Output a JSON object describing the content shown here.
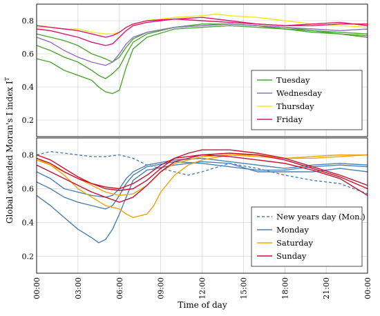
{
  "chart_data": {
    "type": "line",
    "ylabel": "Global extended Moran's I index I",
    "ylabel_sup": "T",
    "xlabel": "Time of day",
    "x_ticks": [
      "00:00",
      "03:00",
      "06:00",
      "09:00",
      "12:00",
      "15:00",
      "18:00",
      "21:00",
      "00:00"
    ],
    "x_range_hours": [
      0,
      24
    ],
    "panels": [
      {
        "id": "top",
        "ylim": [
          0.1,
          0.9
        ],
        "y_ticks": [
          "0.2",
          "0.4",
          "0.6",
          "0.8"
        ],
        "legend_position": "bottom-right",
        "legend": [
          {
            "name": "Tuesday",
            "color": "#4ca62f"
          },
          {
            "name": "Wednesday",
            "color": "#8c72c2"
          },
          {
            "name": "Thursday",
            "color": "#f5e816"
          },
          {
            "name": "Friday",
            "color": "#e0146a"
          }
        ],
        "series": [
          {
            "name": "Tuesday",
            "color": "#4ca62f",
            "x": [
              0,
              1,
              2,
              3,
              4,
              4.5,
              5,
              5.5,
              6,
              6.5,
              7,
              8,
              10,
              12,
              14,
              16,
              18,
              20,
              22,
              24
            ],
            "y": [
              0.57,
              0.55,
              0.5,
              0.47,
              0.44,
              0.4,
              0.37,
              0.36,
              0.38,
              0.52,
              0.63,
              0.7,
              0.75,
              0.76,
              0.77,
              0.76,
              0.75,
              0.74,
              0.72,
              0.7
            ]
          },
          {
            "name": "Tuesday",
            "color": "#4ca62f",
            "x": [
              0,
              1,
              2,
              3,
              4,
              4.5,
              5,
              5.5,
              6,
              6.5,
              7,
              8,
              10,
              12,
              14,
              16,
              18,
              20,
              22,
              24
            ],
            "y": [
              0.65,
              0.62,
              0.58,
              0.55,
              0.5,
              0.47,
              0.45,
              0.48,
              0.52,
              0.6,
              0.67,
              0.72,
              0.76,
              0.77,
              0.78,
              0.77,
              0.75,
              0.73,
              0.72,
              0.71
            ]
          },
          {
            "name": "Tuesday",
            "color": "#4ca62f",
            "x": [
              0,
              1,
              2,
              3,
              4,
              5,
              5.5,
              6,
              6.5,
              7,
              8,
              10,
              12,
              14,
              16,
              18,
              20,
              22,
              24
            ],
            "y": [
              0.72,
              0.7,
              0.68,
              0.65,
              0.6,
              0.57,
              0.55,
              0.58,
              0.64,
              0.69,
              0.73,
              0.76,
              0.78,
              0.78,
              0.77,
              0.76,
              0.74,
              0.73,
              0.72
            ]
          },
          {
            "name": "Wednesday",
            "color": "#8c72c2",
            "x": [
              0,
              1,
              2,
              3,
              4,
              5,
              5.5,
              6,
              6.5,
              7,
              8,
              10,
              12,
              14,
              16,
              18,
              20,
              22,
              24
            ],
            "y": [
              0.7,
              0.67,
              0.62,
              0.58,
              0.55,
              0.53,
              0.55,
              0.6,
              0.66,
              0.7,
              0.73,
              0.76,
              0.77,
              0.78,
              0.77,
              0.76,
              0.75,
              0.74,
              0.75
            ]
          },
          {
            "name": "Thursday",
            "color": "#f5e816",
            "x": [
              0,
              1,
              2,
              3,
              4,
              5,
              5.5,
              6,
              6.5,
              7,
              8,
              10,
              12,
              13,
              14,
              16,
              18,
              20,
              22,
              24
            ],
            "y": [
              0.76,
              0.76,
              0.75,
              0.75,
              0.73,
              0.72,
              0.72,
              0.73,
              0.76,
              0.78,
              0.8,
              0.82,
              0.83,
              0.84,
              0.83,
              0.82,
              0.8,
              0.78,
              0.77,
              0.76
            ]
          },
          {
            "name": "Friday",
            "color": "#e0146a",
            "x": [
              0,
              1,
              2,
              3,
              4,
              5,
              5.5,
              6,
              6.5,
              7,
              8,
              10,
              12,
              14,
              16,
              18,
              20,
              22,
              24
            ],
            "y": [
              0.75,
              0.74,
              0.72,
              0.7,
              0.67,
              0.65,
              0.66,
              0.7,
              0.74,
              0.77,
              0.79,
              0.81,
              0.82,
              0.8,
              0.78,
              0.77,
              0.77,
              0.78,
              0.78
            ]
          },
          {
            "name": "Friday",
            "color": "#e0146a",
            "x": [
              0,
              1,
              2,
              3,
              4,
              5,
              5.5,
              6,
              6.5,
              7,
              8,
              10,
              12,
              14,
              16,
              18,
              20,
              22,
              24
            ],
            "y": [
              0.77,
              0.76,
              0.75,
              0.74,
              0.72,
              0.7,
              0.71,
              0.73,
              0.76,
              0.78,
              0.8,
              0.81,
              0.8,
              0.79,
              0.78,
              0.77,
              0.78,
              0.79,
              0.77
            ]
          }
        ]
      },
      {
        "id": "bottom",
        "ylim": [
          0.1,
          0.9
        ],
        "y_ticks": [
          "0.2",
          "0.4",
          "0.6",
          "0.8"
        ],
        "legend_position": "bottom-right",
        "legend": [
          {
            "name": "New years day (Mon.)",
            "color": "#4a7fb5",
            "dashed": true
          },
          {
            "name": "Monday",
            "color": "#4a7fb5"
          },
          {
            "name": "Saturday",
            "color": "#f0a30a"
          },
          {
            "name": "Sunday",
            "color": "#c8102e"
          }
        ],
        "series": [
          {
            "name": "New years day (Mon.)",
            "color": "#4a7fb5",
            "dashed": true,
            "x": [
              0,
              1,
              2,
              3,
              4,
              5,
              6,
              7,
              8,
              9,
              10,
              11,
              12,
              14,
              16,
              18,
              20,
              22,
              24
            ],
            "y": [
              0.8,
              0.82,
              0.81,
              0.8,
              0.79,
              0.79,
              0.8,
              0.78,
              0.74,
              0.72,
              0.7,
              0.68,
              0.7,
              0.75,
              0.72,
              0.68,
              0.65,
              0.63,
              0.57
            ]
          },
          {
            "name": "Monday",
            "color": "#4a7fb5",
            "x": [
              0,
              1,
              2,
              3,
              4,
              4.5,
              5,
              5.5,
              6,
              6.5,
              7,
              8,
              10,
              12,
              14,
              16,
              18,
              20,
              22,
              24
            ],
            "y": [
              0.56,
              0.5,
              0.43,
              0.36,
              0.31,
              0.28,
              0.3,
              0.36,
              0.45,
              0.55,
              0.65,
              0.71,
              0.74,
              0.76,
              0.75,
              0.7,
              0.7,
              0.7,
              0.72,
              0.7
            ]
          },
          {
            "name": "Monday",
            "color": "#4a7fb5",
            "x": [
              0,
              1,
              2,
              3,
              4,
              5,
              5.5,
              6,
              6.5,
              7,
              8,
              10,
              12,
              14,
              16,
              18,
              20,
              22,
              24
            ],
            "y": [
              0.64,
              0.6,
              0.55,
              0.52,
              0.5,
              0.48,
              0.5,
              0.56,
              0.63,
              0.68,
              0.73,
              0.76,
              0.75,
              0.73,
              0.71,
              0.71,
              0.73,
              0.74,
              0.73
            ]
          },
          {
            "name": "Monday",
            "color": "#4a7fb5",
            "x": [
              0,
              1,
              2,
              3,
              4,
              5,
              5.5,
              6,
              6.5,
              7,
              8,
              10,
              12,
              14,
              16,
              18,
              20,
              22,
              24
            ],
            "y": [
              0.7,
              0.66,
              0.6,
              0.58,
              0.56,
              0.55,
              0.56,
              0.6,
              0.66,
              0.7,
              0.74,
              0.77,
              0.78,
              0.76,
              0.74,
              0.72,
              0.74,
              0.75,
              0.74
            ]
          },
          {
            "name": "Saturday",
            "color": "#f0a30a",
            "x": [
              0,
              1,
              2,
              3,
              4,
              5,
              6,
              6.5,
              7,
              7.5,
              8,
              8.5,
              9,
              10,
              11,
              12,
              14,
              16,
              18,
              20,
              22,
              24
            ],
            "y": [
              0.78,
              0.74,
              0.68,
              0.6,
              0.55,
              0.5,
              0.48,
              0.45,
              0.43,
              0.44,
              0.45,
              0.5,
              0.58,
              0.68,
              0.74,
              0.77,
              0.8,
              0.8,
              0.78,
              0.79,
              0.8,
              0.8
            ]
          },
          {
            "name": "Saturday",
            "color": "#f0a30a",
            "x": [
              0,
              1,
              2,
              3,
              4,
              5,
              6,
              7,
              8,
              9,
              10,
              12,
              14,
              16,
              18,
              20,
              22,
              24
            ],
            "y": [
              0.77,
              0.74,
              0.7,
              0.66,
              0.62,
              0.58,
              0.56,
              0.57,
              0.62,
              0.7,
              0.75,
              0.79,
              0.8,
              0.79,
              0.78,
              0.78,
              0.79,
              0.8
            ]
          },
          {
            "name": "Sunday",
            "color": "#c8102e",
            "x": [
              0,
              1,
              2,
              3,
              4,
              5,
              6,
              7,
              8,
              9,
              10,
              11,
              12,
              14,
              16,
              18,
              20,
              22,
              24
            ],
            "y": [
              0.8,
              0.77,
              0.72,
              0.67,
              0.63,
              0.6,
              0.59,
              0.6,
              0.65,
              0.72,
              0.78,
              0.81,
              0.83,
              0.83,
              0.81,
              0.78,
              0.73,
              0.68,
              0.62
            ]
          },
          {
            "name": "Sunday",
            "color": "#c8102e",
            "x": [
              0,
              1,
              2,
              3,
              4,
              5,
              6,
              7,
              8,
              9,
              10,
              12,
              14,
              16,
              18,
              20,
              22,
              24
            ],
            "y": [
              0.74,
              0.7,
              0.66,
              0.62,
              0.58,
              0.55,
              0.52,
              0.55,
              0.62,
              0.7,
              0.76,
              0.8,
              0.81,
              0.8,
              0.77,
              0.72,
              0.67,
              0.6
            ]
          },
          {
            "name": "Sunday",
            "color": "#c8102e",
            "x": [
              0,
              1,
              2,
              3,
              4,
              5,
              6,
              7,
              8,
              9,
              10,
              12,
              14,
              16,
              18,
              20,
              22,
              24
            ],
            "y": [
              0.78,
              0.75,
              0.7,
              0.66,
              0.63,
              0.61,
              0.6,
              0.63,
              0.68,
              0.74,
              0.78,
              0.8,
              0.79,
              0.77,
              0.75,
              0.71,
              0.66,
              0.56
            ]
          }
        ]
      }
    ]
  }
}
